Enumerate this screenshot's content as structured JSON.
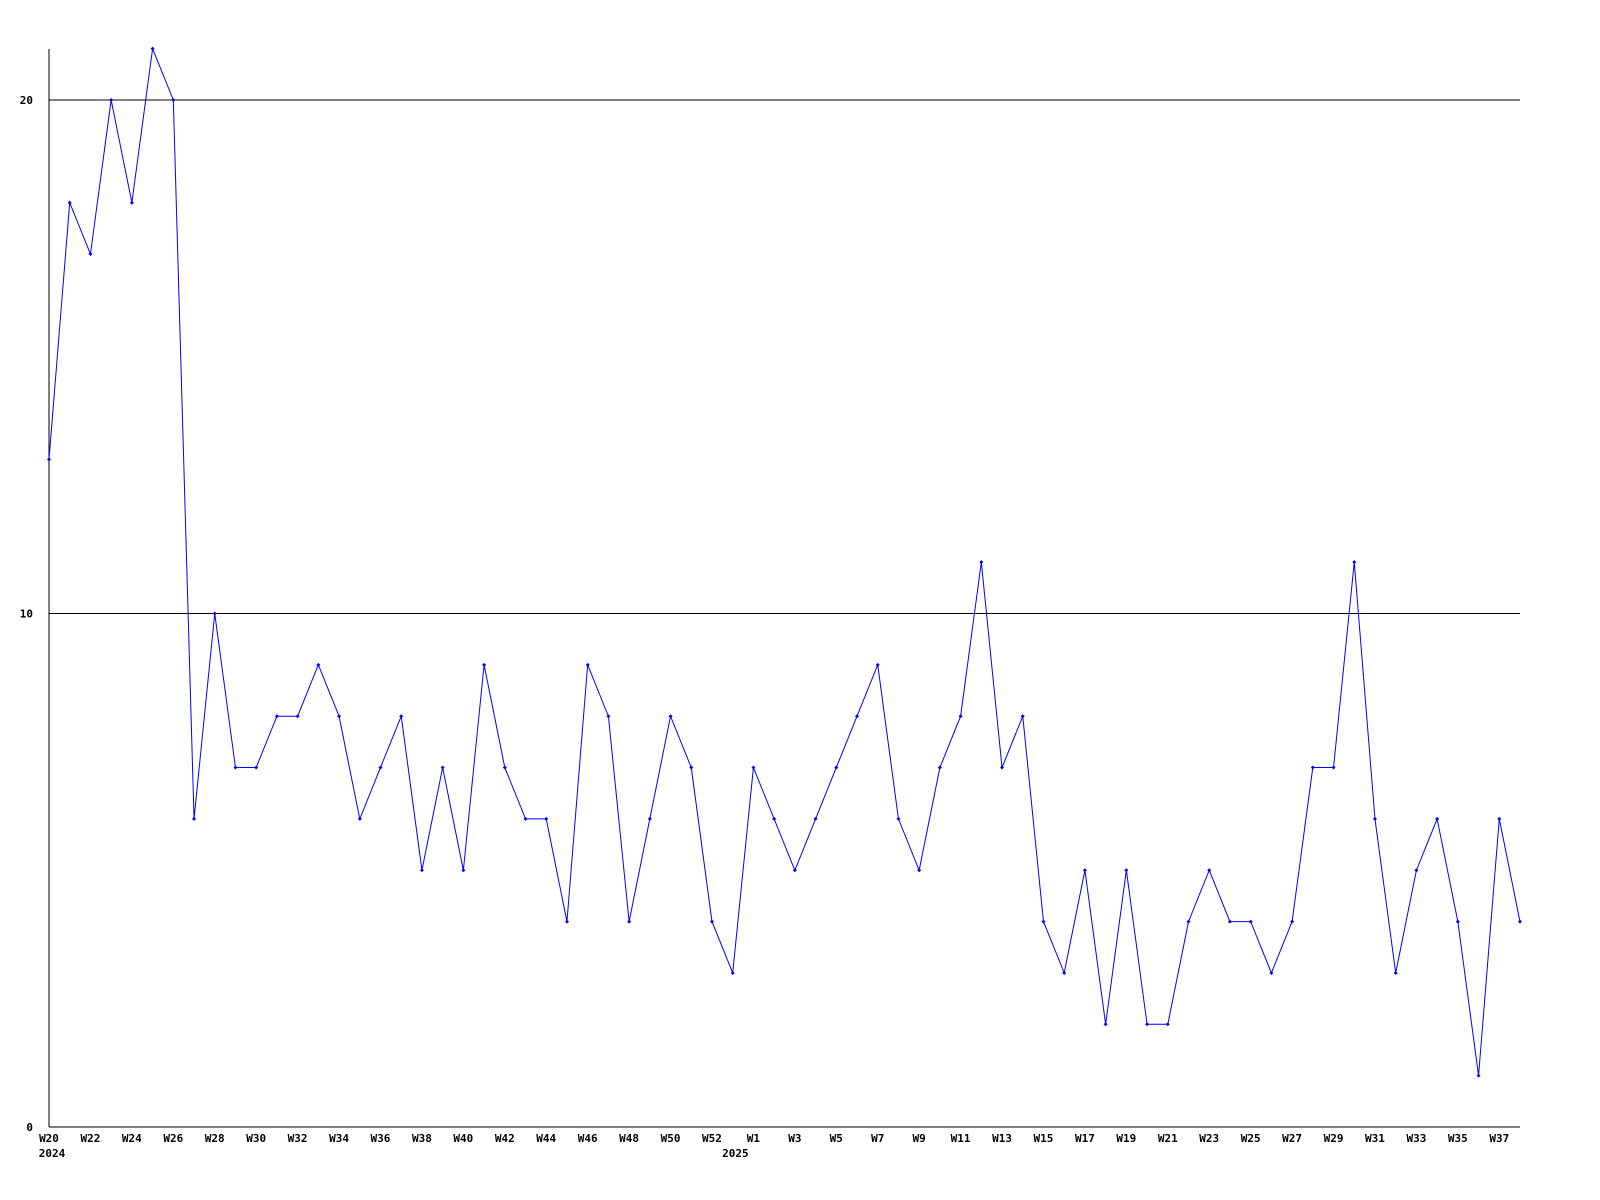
{
  "chart_data": {
    "type": "line",
    "title": "",
    "xlabel": "",
    "ylabel": "",
    "ylim": [
      0,
      21
    ],
    "yticks": [
      0,
      10,
      20
    ],
    "grid": "horizontal lines at y ticks",
    "line_color": "#0000ff",
    "x": [
      "W20",
      "W21",
      "W22",
      "W23",
      "W24",
      "W25",
      "W26",
      "W27",
      "W28",
      "W29",
      "W30",
      "W31",
      "W32",
      "W33",
      "W34",
      "W35",
      "W36",
      "W37",
      "W38",
      "W39",
      "W40",
      "W41",
      "W42",
      "W43",
      "W44",
      "W45",
      "W46",
      "W47",
      "W48",
      "W49",
      "W50",
      "W51",
      "W52",
      "W53",
      "W1",
      "W2",
      "W3",
      "W4",
      "W5",
      "W6",
      "W7",
      "W8",
      "W9",
      "W10",
      "W11",
      "W12",
      "W13",
      "W14",
      "W15",
      "W16",
      "W17",
      "W18",
      "W19",
      "W20",
      "W21",
      "W22",
      "W23",
      "W24",
      "W25",
      "W26",
      "W27",
      "W28",
      "W29",
      "W30",
      "W31",
      "W32",
      "W33",
      "W34",
      "W35",
      "W36",
      "W37",
      "W38"
    ],
    "values": [
      13,
      18,
      17,
      20,
      18,
      21,
      20,
      6,
      10,
      7,
      7,
      8,
      8,
      9,
      8,
      6,
      7,
      8,
      5,
      7,
      5,
      9,
      7,
      6,
      6,
      4,
      9,
      8,
      4,
      6,
      8,
      7,
      4,
      3,
      7,
      6,
      5,
      6,
      7,
      8,
      9,
      6,
      5,
      7,
      8,
      11,
      7,
      8,
      4,
      3,
      5,
      2,
      5,
      2,
      2,
      4,
      5,
      4,
      4,
      3,
      4,
      7,
      7,
      11,
      6,
      3,
      5,
      6,
      4,
      1,
      6,
      4
    ],
    "xtick_labels": [
      "W20",
      "W22",
      "W24",
      "W26",
      "W28",
      "W30",
      "W32",
      "W34",
      "W36",
      "W38",
      "W40",
      "W42",
      "W44",
      "W46",
      "W48",
      "W50",
      "W52",
      "W1",
      "W3",
      "W5",
      "W7",
      "W9",
      "W11",
      "W13",
      "W15",
      "W17",
      "W19",
      "W21",
      "W23",
      "W25",
      "W27",
      "W29",
      "W31",
      "W33",
      "W35",
      "W37"
    ],
    "year_labels": [
      {
        "label": "2024",
        "at": "W20"
      },
      {
        "label": "2025",
        "at": "W1"
      }
    ]
  }
}
